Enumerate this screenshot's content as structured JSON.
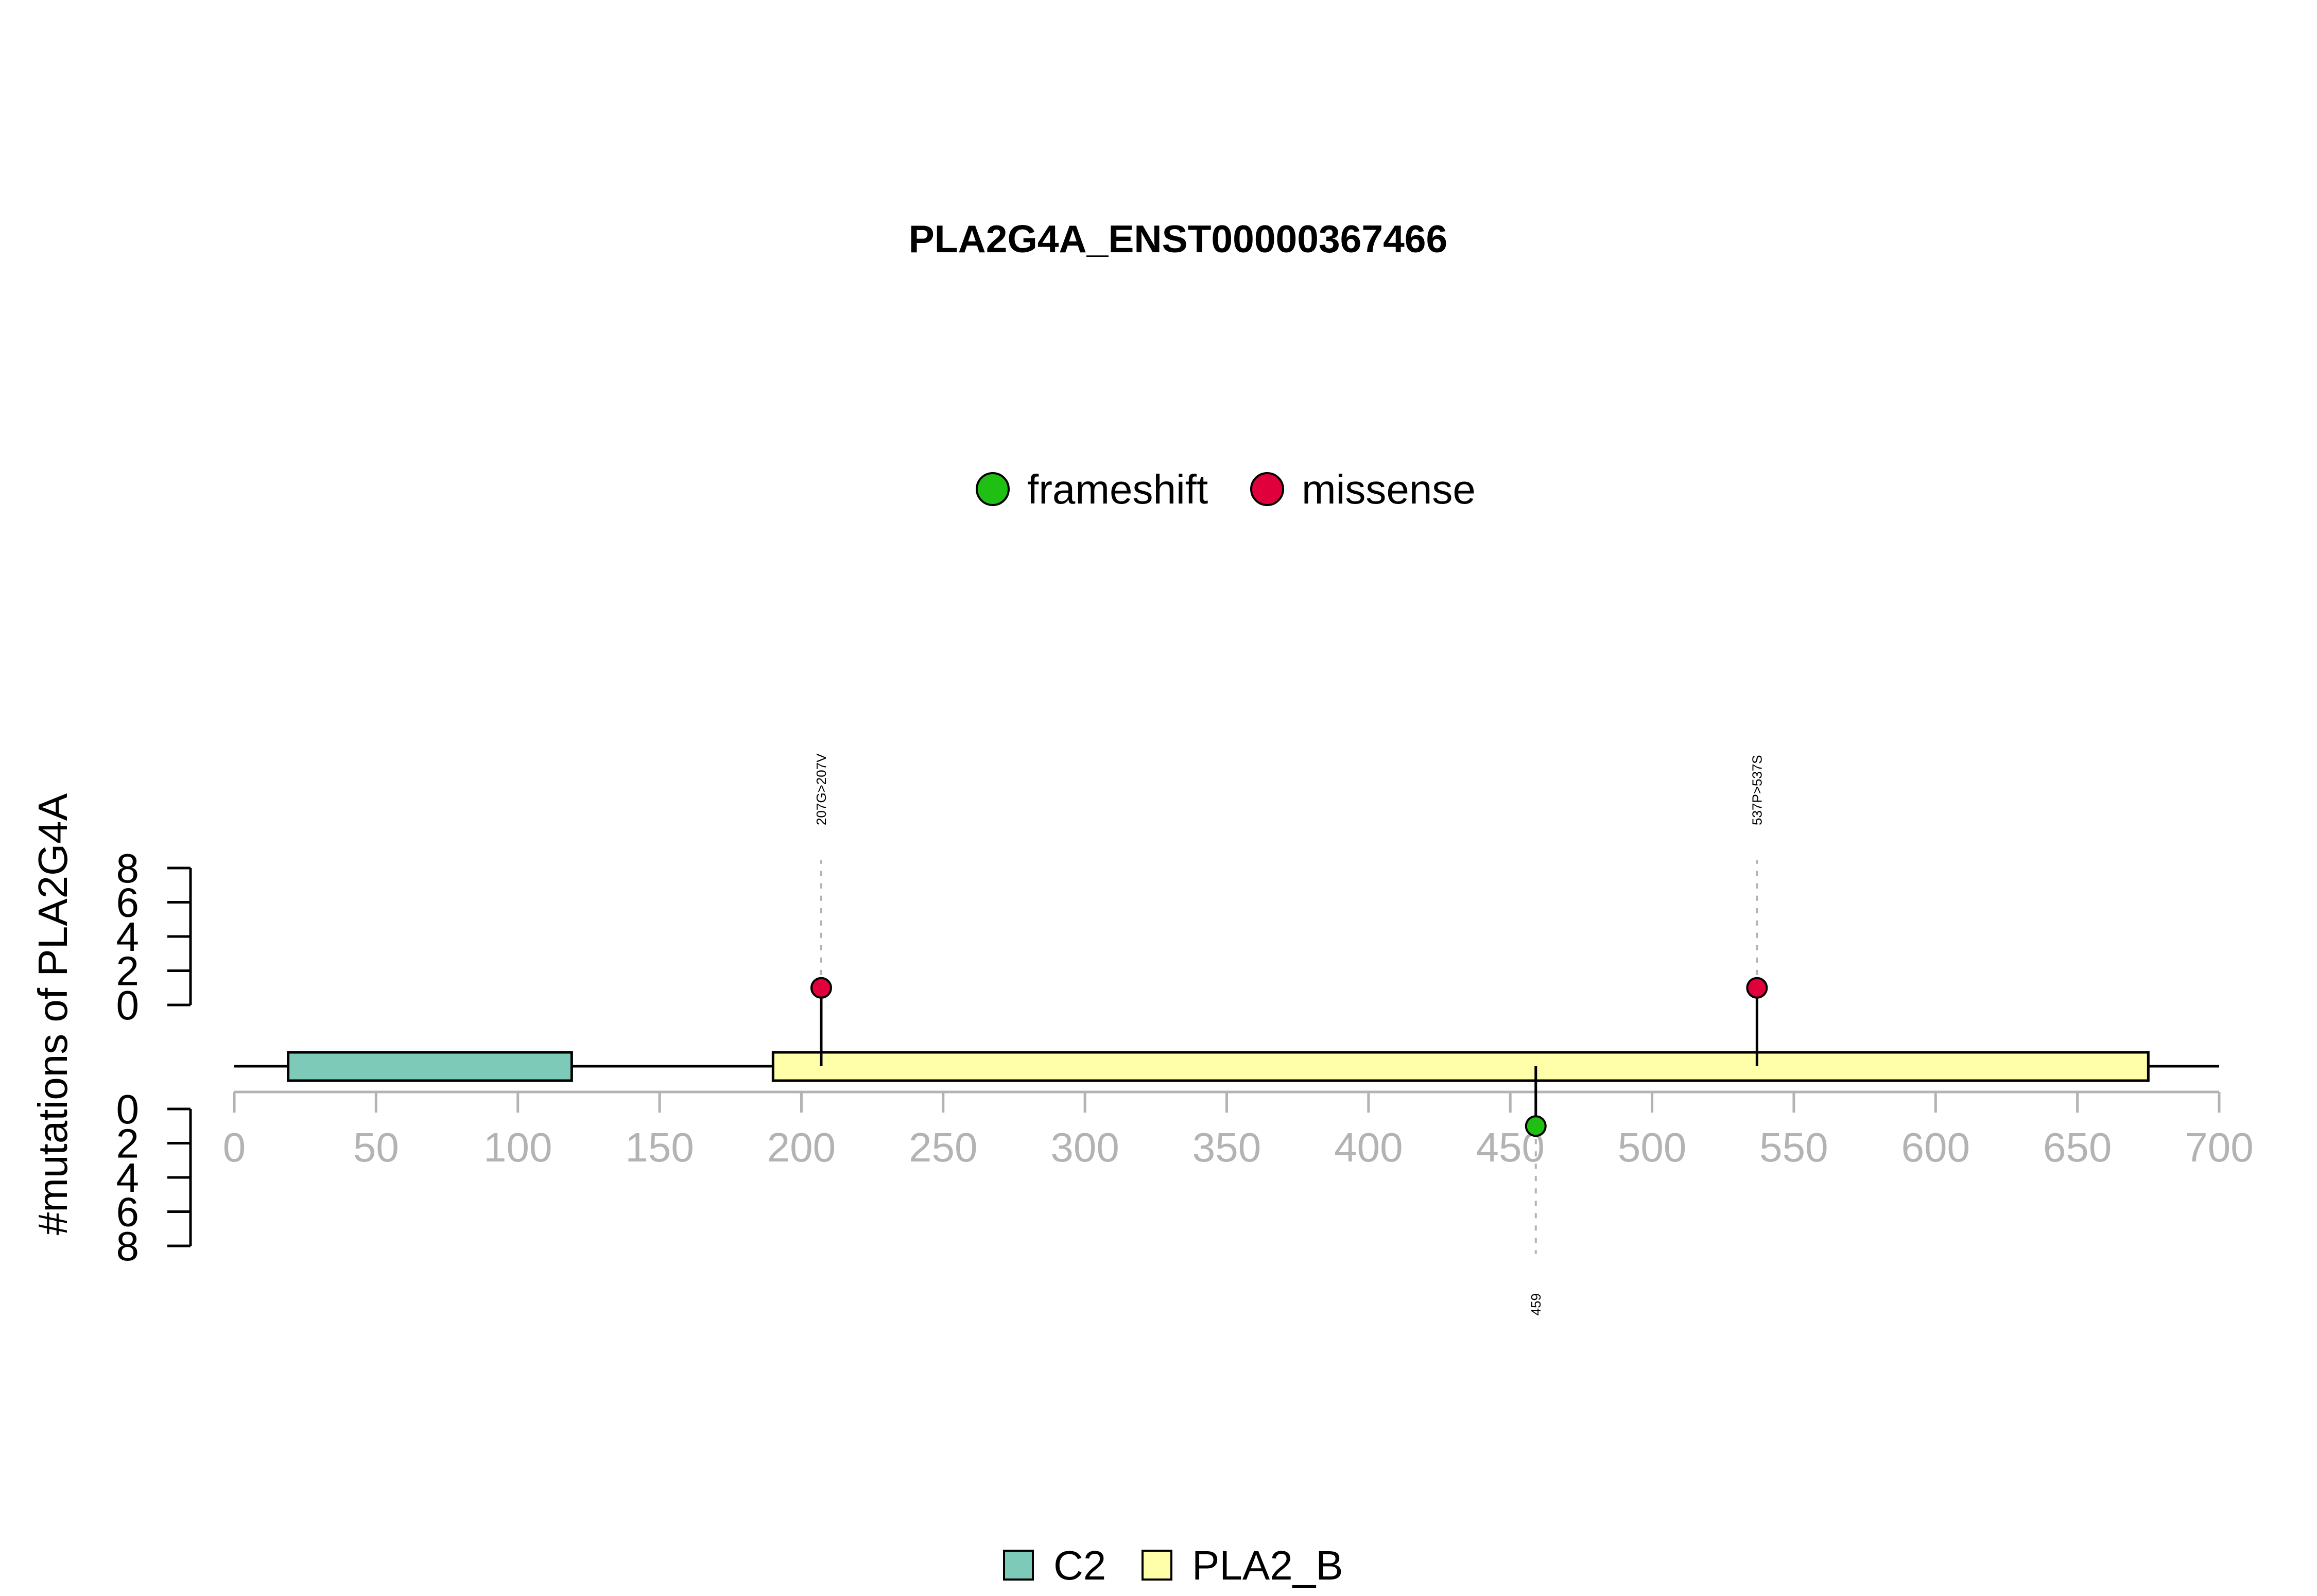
{
  "chart_data": {
    "type": "lollipop",
    "title": "PLA2G4A_ENST00000367466",
    "ylabel": "#mutations of PLA2G4A",
    "xlim": [
      0,
      700
    ],
    "x_ticks": [
      "0",
      "50",
      "100",
      "150",
      "200",
      "250",
      "300",
      "350",
      "400",
      "450",
      "500",
      "550",
      "600",
      "650",
      "700"
    ],
    "y_ticks_upper": [
      "8",
      "6",
      "4",
      "2",
      "0"
    ],
    "y_ticks_lower": [
      "0",
      "2",
      "4",
      "6",
      "8"
    ],
    "protein_length": 700,
    "mutation_legend": [
      {
        "name": "frameshift",
        "color": "#1fbf14"
      },
      {
        "name": "missense",
        "color": "#e0003c"
      }
    ],
    "domains": [
      {
        "name": "C2",
        "start": 19,
        "end": 119,
        "color": "#7ecab9"
      },
      {
        "name": "PLA2_B",
        "start": 190,
        "end": 675,
        "color": "#ffffaa"
      }
    ],
    "mutations": [
      {
        "position": 207,
        "count": 1,
        "type": "missense",
        "label": "207G>207V",
        "side": "top"
      },
      {
        "position": 537,
        "count": 1,
        "type": "missense",
        "label": "537P>537S",
        "side": "top"
      },
      {
        "position": 459,
        "count": 1,
        "type": "frameshift",
        "label": "459",
        "side": "bottom"
      }
    ]
  }
}
